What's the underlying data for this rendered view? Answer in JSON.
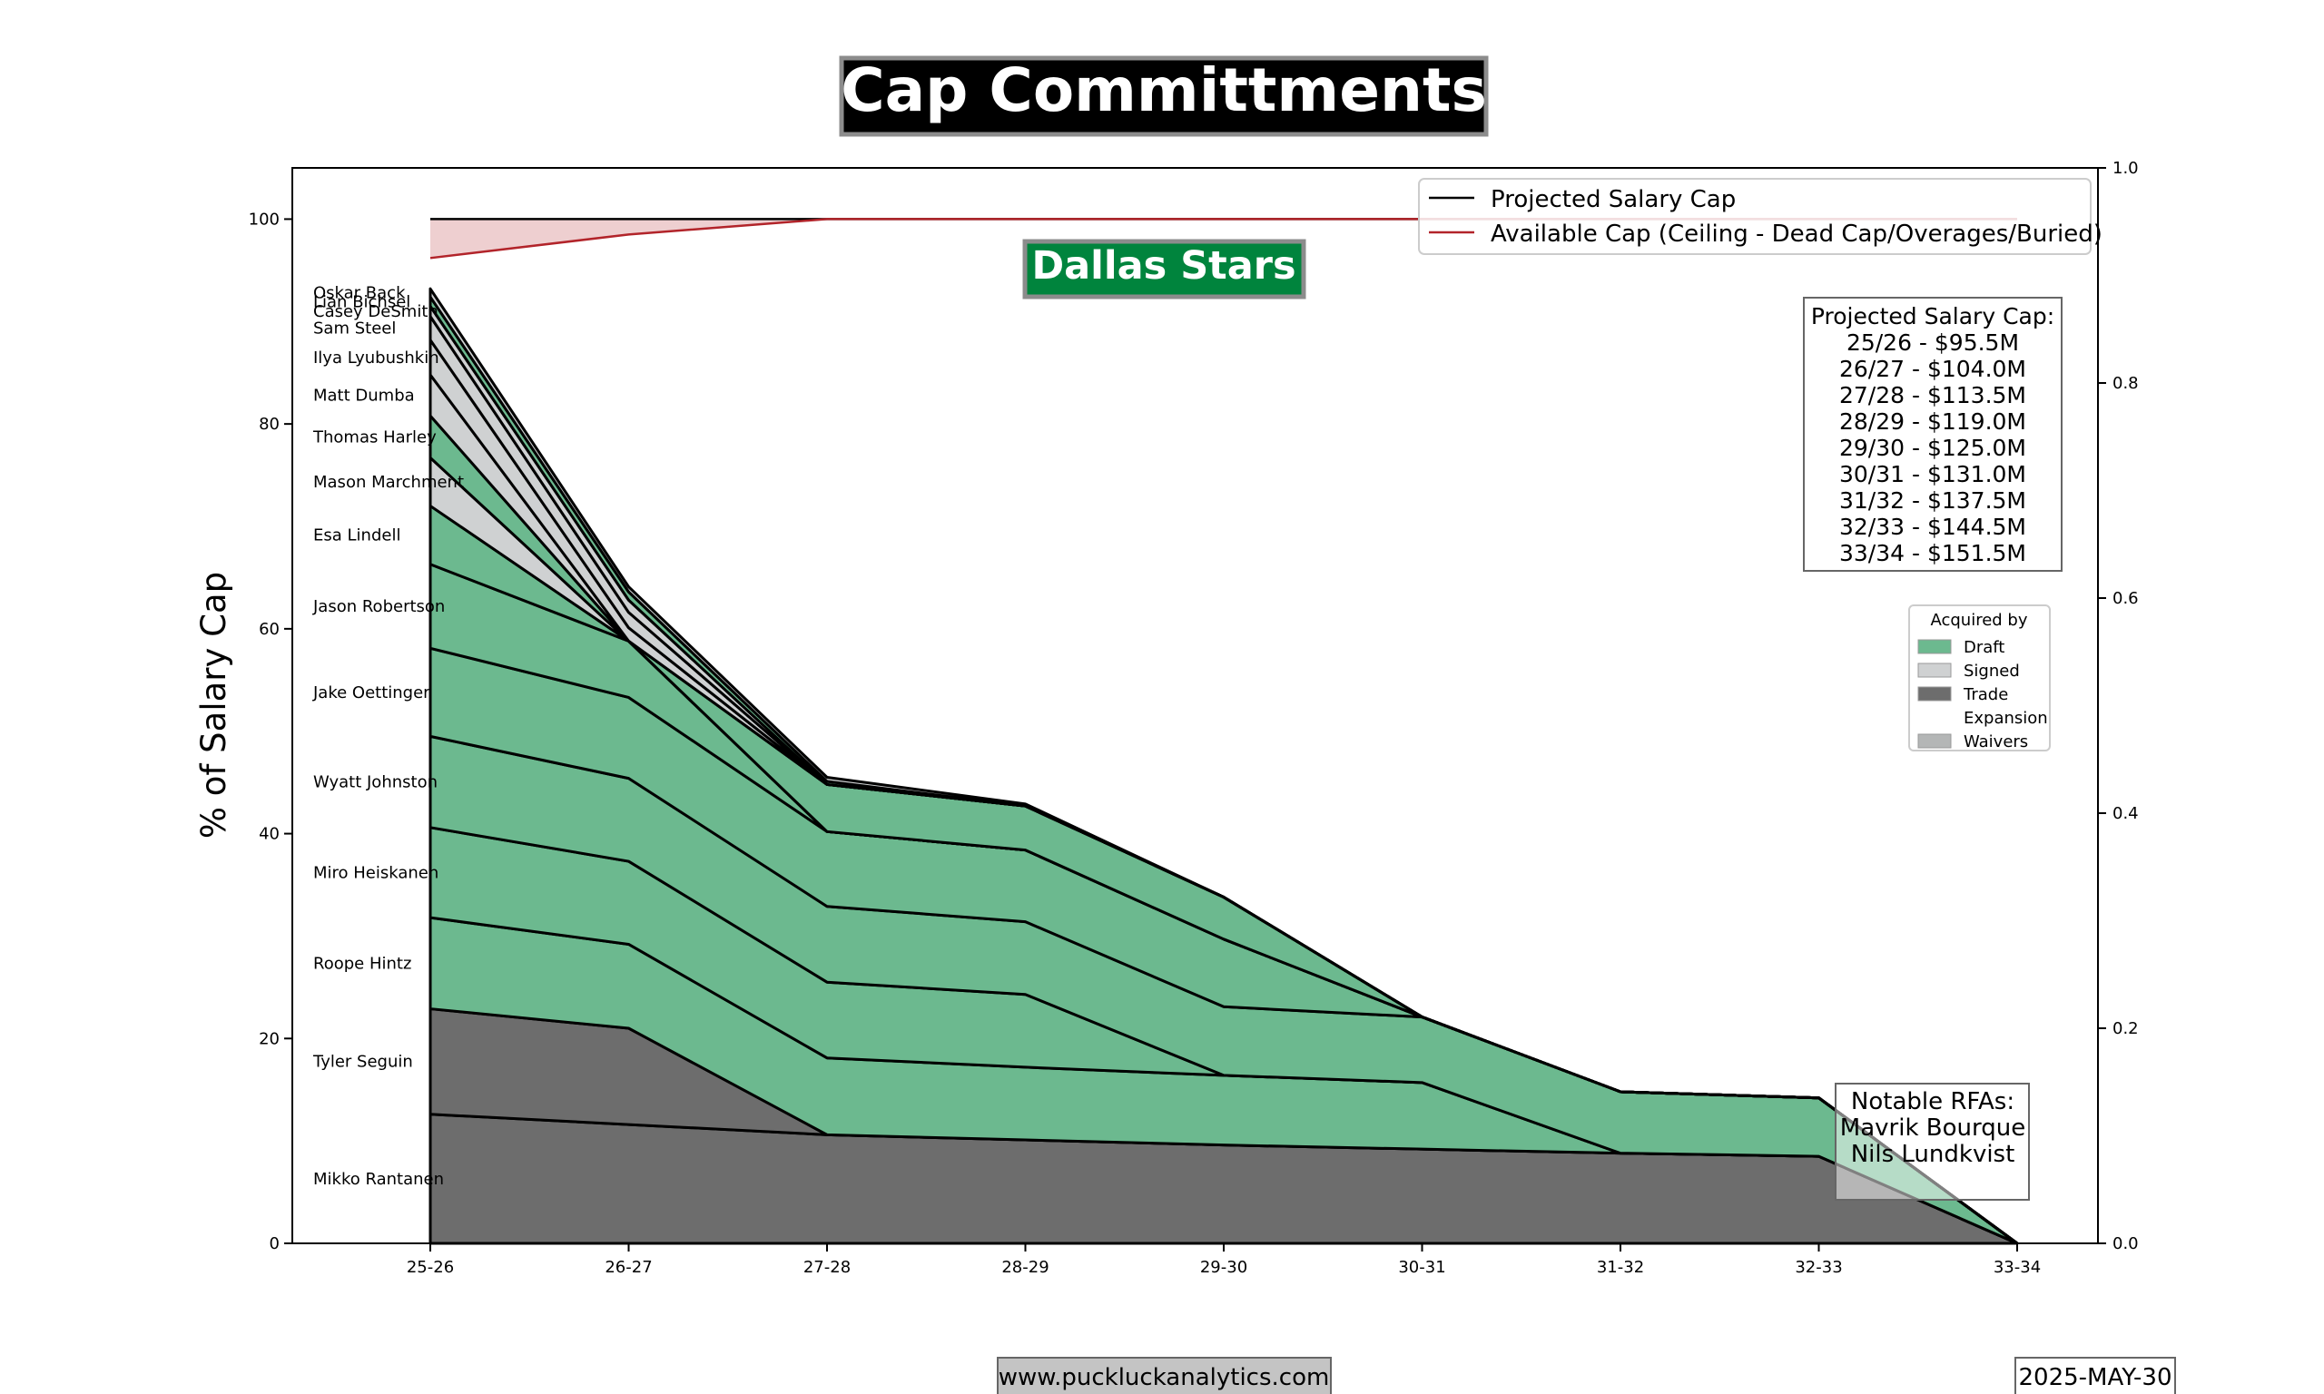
{
  "chart_data": {
    "type": "area",
    "title": "Cap Committments",
    "team_label": "Dallas Stars",
    "ylabel": "% of Salary Cap",
    "ylim": [
      0,
      105
    ],
    "y_ticks": [
      "0",
      "20",
      "40",
      "60",
      "80",
      "100"
    ],
    "right_ylim": [
      0,
      1
    ],
    "right_y_ticks": [
      "0.0",
      "0.2",
      "0.4",
      "0.6",
      "0.8",
      "1.0"
    ],
    "categories": [
      "25-26",
      "26-27",
      "27-28",
      "28-29",
      "29-30",
      "30-31",
      "31-32",
      "32-33",
      "33-34"
    ],
    "players": [
      {
        "name": "Mikko Rantanen",
        "acquired": "Trade",
        "values": [
          12.6,
          11.6,
          10.6,
          10.1,
          9.6,
          9.2,
          8.8,
          8.5,
          0
        ]
      },
      {
        "name": "Tyler Seguin",
        "acquired": "Trade",
        "values": [
          10.3,
          9.4,
          0,
          0,
          0,
          0,
          0,
          0,
          0
        ]
      },
      {
        "name": "Roope Hintz",
        "acquired": "Draft",
        "values": [
          8.9,
          8.2,
          7.5,
          7.1,
          6.8,
          6.5,
          0,
          0,
          0
        ]
      },
      {
        "name": "Miro Heiskanen",
        "acquired": "Draft",
        "values": [
          8.8,
          8.1,
          7.4,
          7.1,
          0,
          0,
          0,
          0,
          0
        ]
      },
      {
        "name": "Wyatt Johnston",
        "acquired": "Draft",
        "values": [
          8.9,
          8.1,
          7.4,
          7.1,
          6.7,
          6.4,
          6.0,
          5.7,
          0
        ]
      },
      {
        "name": "Jake Oettinger",
        "acquired": "Draft",
        "values": [
          8.6,
          7.9,
          7.3,
          7.0,
          6.6,
          0,
          0,
          0,
          0
        ]
      },
      {
        "name": "Jason Robertson",
        "acquired": "Draft",
        "values": [
          8.2,
          5.5,
          0,
          0,
          0,
          0,
          0,
          0,
          0
        ]
      },
      {
        "name": "Esa Lindell",
        "acquired": "Draft",
        "values": [
          5.7,
          0,
          0,
          0,
          0,
          0,
          0,
          0,
          0
        ]
      },
      {
        "name": "Mason Marchment",
        "acquired": "Signed",
        "values": [
          4.7,
          0,
          0,
          0,
          0,
          0,
          0,
          0,
          0
        ]
      },
      {
        "name": "Thomas Harley",
        "acquired": "Draft",
        "values": [
          4.1,
          0,
          4.6,
          4.3,
          4.1,
          0,
          0,
          0,
          0
        ]
      },
      {
        "name": "Matt Dumba",
        "acquired": "Signed",
        "values": [
          4.0,
          0,
          0,
          0,
          0,
          0,
          0,
          0,
          0
        ]
      },
      {
        "name": "Ilya Lyubushkin",
        "acquired": "Signed",
        "values": [
          3.4,
          1.3,
          0,
          0,
          0,
          0,
          0,
          0,
          0
        ]
      },
      {
        "name": "Sam Steel",
        "acquired": "Signed",
        "values": [
          2.3,
          1.5,
          0,
          0,
          0,
          0,
          0,
          0,
          0
        ]
      },
      {
        "name": "Casey DeSmith",
        "acquired": "Signed",
        "values": [
          1.0,
          1.2,
          0,
          0,
          0,
          0,
          0,
          0,
          0
        ]
      },
      {
        "name": "Lian Bichsel",
        "acquired": "Draft",
        "values": [
          0.9,
          0.8,
          0.3,
          0,
          0,
          0,
          0,
          0,
          0
        ]
      },
      {
        "name": "Oskar Back",
        "acquired": "Signed",
        "values": [
          0.8,
          0.5,
          0.4,
          0.2,
          0,
          0,
          0,
          0,
          0
        ]
      }
    ],
    "projected_salary_cap": {
      "name": "Projected Salary Cap",
      "color": "#000000",
      "values": [
        100,
        100,
        100,
        100,
        100,
        100,
        100,
        100,
        100
      ]
    },
    "available_cap": {
      "name": "Available Cap (Ceiling - Dead Cap/Overages/Buried)",
      "color": "#b2242a",
      "values": [
        96.2,
        98.5,
        100,
        100,
        100,
        100,
        100,
        100,
        100
      ]
    },
    "legend_placement": "top-right",
    "acquired_legend": {
      "title": "Acquired by",
      "items": [
        {
          "label": "Draft",
          "color": "#6cb98f"
        },
        {
          "label": "Signed",
          "color": "#cfd1d2"
        },
        {
          "label": "Trade",
          "color": "#6d6d6d"
        },
        {
          "label": "Expansion",
          "color": "#ffffff"
        },
        {
          "label": "Waivers",
          "color": "#b4b6b6"
        }
      ]
    },
    "cap_box": {
      "title": "Projected Salary Cap:",
      "lines": [
        "25/26 - $95.5M",
        "26/27 - $104.0M",
        "27/28 - $113.5M",
        "28/29 - $119.0M",
        "29/30 - $125.0M",
        "30/31 - $131.0M",
        "31/32 - $137.5M",
        "32/33 - $144.5M",
        "33/34 - $151.5M"
      ]
    },
    "rfa_box": {
      "lines": [
        "Notable RFAs:",
        "Mavrik Bourque",
        "Nils Lundkvist"
      ]
    },
    "grid": false
  },
  "footer": {
    "website": "www.puckluckanalytics.com",
    "date": "2025-MAY-30"
  },
  "colors": {
    "team_badge": "#00843d",
    "title_badge": "#000000",
    "badge_border": "#8c8c8c"
  }
}
